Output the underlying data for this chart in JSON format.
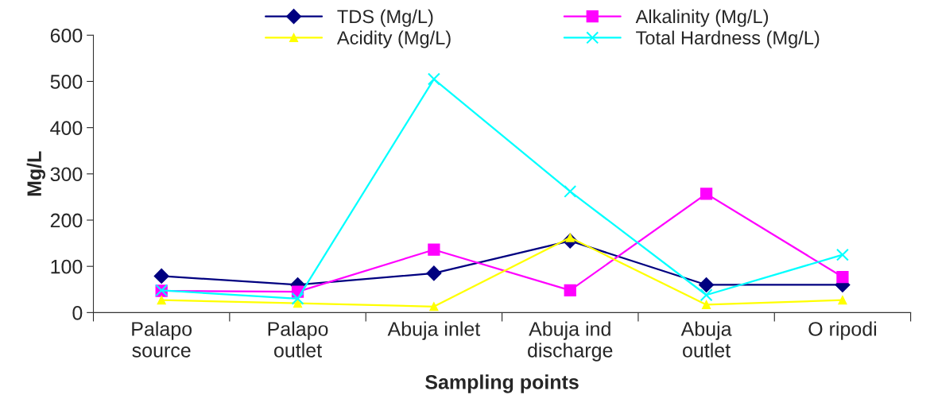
{
  "chart_data": {
    "type": "line",
    "xlabel": "Sampling points",
    "ylabel": "Mg/L",
    "categories": [
      "Palapo\nsource",
      "Palapo\noutlet",
      "Abuja inlet",
      "Abuja ind\ndischarge",
      "Abuja\noutlet",
      "O ripodi"
    ],
    "series": [
      {
        "name": "TDS (Mg/L)",
        "color": "#000080",
        "marker": "diamond",
        "values": [
          79,
          60,
          85,
          155,
          60,
          60
        ]
      },
      {
        "name": "Alkalinity (Mg/L)",
        "color": "#ff00ff",
        "marker": "square",
        "values": [
          47,
          45,
          136,
          48,
          257,
          77
        ]
      },
      {
        "name": "Acidity (Mg/L)",
        "color": "#ffff00",
        "marker": "triangle",
        "values": [
          27,
          20,
          13,
          162,
          17,
          27
        ]
      },
      {
        "name": "Total Hardness (Mg/L)",
        "color": "#00ffff",
        "marker": "cross",
        "values": [
          48,
          30,
          505,
          262,
          38,
          125
        ]
      }
    ],
    "ylim": [
      0,
      600
    ],
    "yticks": [
      0,
      100,
      200,
      300,
      400,
      500,
      600
    ],
    "grid": false,
    "legend": "top"
  }
}
